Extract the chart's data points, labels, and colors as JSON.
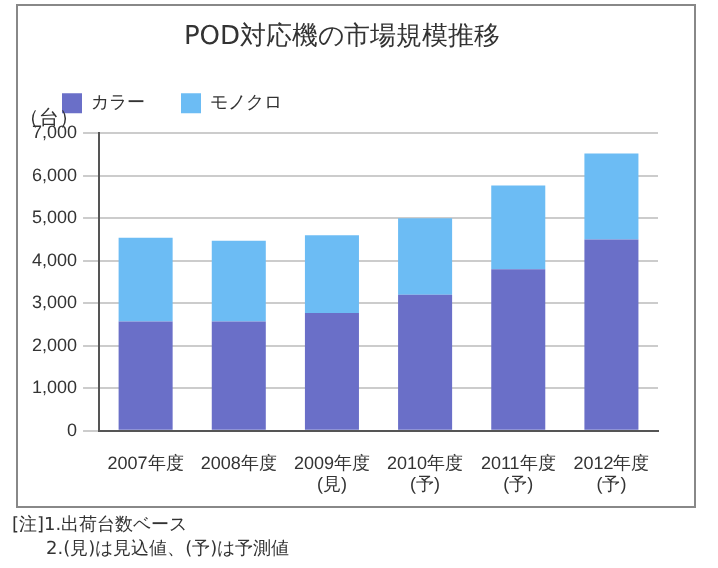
{
  "chart_data": {
    "type": "bar",
    "title": "POD対応機の市場規模推移",
    "ylabel": "（台）",
    "categories": [
      "2007年度",
      "2008年度",
      "2009年度\n(見)",
      "2010年度\n(予)",
      "2011年度\n(予)",
      "2012年度\n(予)"
    ],
    "series": [
      {
        "name": "カラー",
        "color": "#6a6fc8",
        "values": [
          2570,
          2570,
          2770,
          3200,
          3800,
          4500
        ]
      },
      {
        "name": "モノクロ",
        "color": "#6cbcf4",
        "values": [
          1970,
          1900,
          1830,
          1800,
          1970,
          2020
        ]
      }
    ],
    "stacked": true,
    "ylim": [
      0,
      7000
    ],
    "yticks": [
      {
        "value": 0,
        "label": "0"
      },
      {
        "value": 1000,
        "label": "1,000"
      },
      {
        "value": 2000,
        "label": "2,000"
      },
      {
        "value": 3000,
        "label": "3,000"
      },
      {
        "value": 4000,
        "label": "4,000"
      },
      {
        "value": 5000,
        "label": "5,000"
      },
      {
        "value": 6000,
        "label": "6,000"
      },
      {
        "value": 7000,
        "label": "7,000"
      }
    ],
    "grid": "y",
    "legend": "top left",
    "annotations": [
      "[注]1.出荷台数ベース",
      "2.(見)は見込値、(予)は予測値"
    ]
  }
}
